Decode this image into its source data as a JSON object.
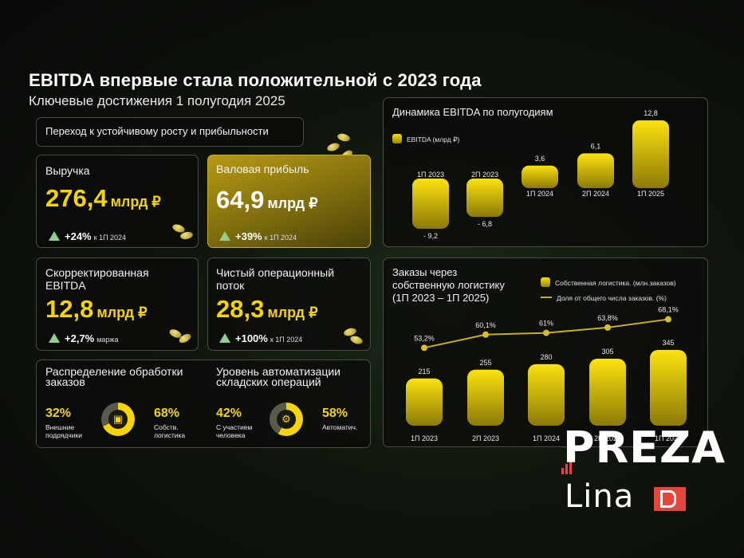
{
  "title": "EBITDA впервые стала положительной с 2023 года",
  "subtitle": "Ключевые достижения 1 полугодия 2025",
  "tagline": "Переход к устойчивому росту и прибыльности",
  "metrics": {
    "revenue": {
      "label": "Выручка",
      "value": "276,4",
      "unit": "млрд ₽",
      "change": "+24%",
      "note": "к 1П 2024"
    },
    "gross": {
      "label": "Валовая прибыль",
      "value": "64,9",
      "unit": "млрд ₽",
      "change": "+39%",
      "note": "к 1П 2024"
    },
    "ebitda": {
      "label1": "Скорректированная",
      "label2": "EBITDA",
      "value": "12,8",
      "unit": "млрд ₽",
      "change": "+2,7%",
      "note": "маржа"
    },
    "cashflow": {
      "label1": "Чистый операционный",
      "label2": "поток",
      "value": "28,3",
      "unit": "млрд ₽",
      "change": "+100%",
      "note": "к 1П 2024"
    }
  },
  "distribution": {
    "title1": "Распределение обработки",
    "title2": "заказов",
    "left_pct": "32%",
    "left_sub1": "Внешние",
    "left_sub2": "подрядчики",
    "right_pct": "68%",
    "right_sub1": "Собств.",
    "right_sub2": "логистика",
    "share": 68
  },
  "automation": {
    "title1": "Уровень автоматизации",
    "title2": "складских операций",
    "left_pct": "42%",
    "left_sub1": "С участием",
    "left_sub2": "человека",
    "right_pct": "58%",
    "right_sub1": "Автоматич.",
    "share": 58
  },
  "chart_data": [
    {
      "type": "bar",
      "title": "Динамика EBITDA по полугодиям",
      "legend": "EBITDA (млрд ₽)",
      "categories": [
        "1П 2023",
        "2П 2023",
        "1П 2024",
        "2П 2024",
        "1П 2025"
      ],
      "values": [
        -9.2,
        -6.8,
        3.6,
        6.1,
        12.8
      ],
      "value_labels": [
        "- 9,2",
        "- 6,8",
        "3,6",
        "6,1",
        "12,8"
      ],
      "ylim": [
        -9.2,
        12.8
      ]
    },
    {
      "type": "bar",
      "title_lines": [
        "Заказы через",
        "собственную логистику",
        "(1П 2023 – 1П 2025)"
      ],
      "legend_bar": "Собственная логистика. (млн.заказов)",
      "legend_line": "Доля от общего числа заказов. (%)",
      "categories": [
        "1П 2023",
        "2П 2023",
        "1П 2024",
        "2П 2024",
        "1П 2025"
      ],
      "series": [
        {
          "name": "Собственная логистика. (млн.заказов)",
          "values": [
            215,
            255,
            280,
            305,
            345
          ],
          "labels": [
            "215",
            "255",
            "280",
            "305",
            "345"
          ]
        },
        {
          "name": "Доля от общего числа заказов. (%)",
          "values": [
            53.2,
            60.1,
            61,
            63.8,
            68.1
          ],
          "labels": [
            "53,2%",
            "60,1%",
            "61%",
            "63,8%",
            "68,1%"
          ]
        }
      ]
    }
  ],
  "logo": {
    "line1": "PREZA",
    "line2": "Lina"
  }
}
